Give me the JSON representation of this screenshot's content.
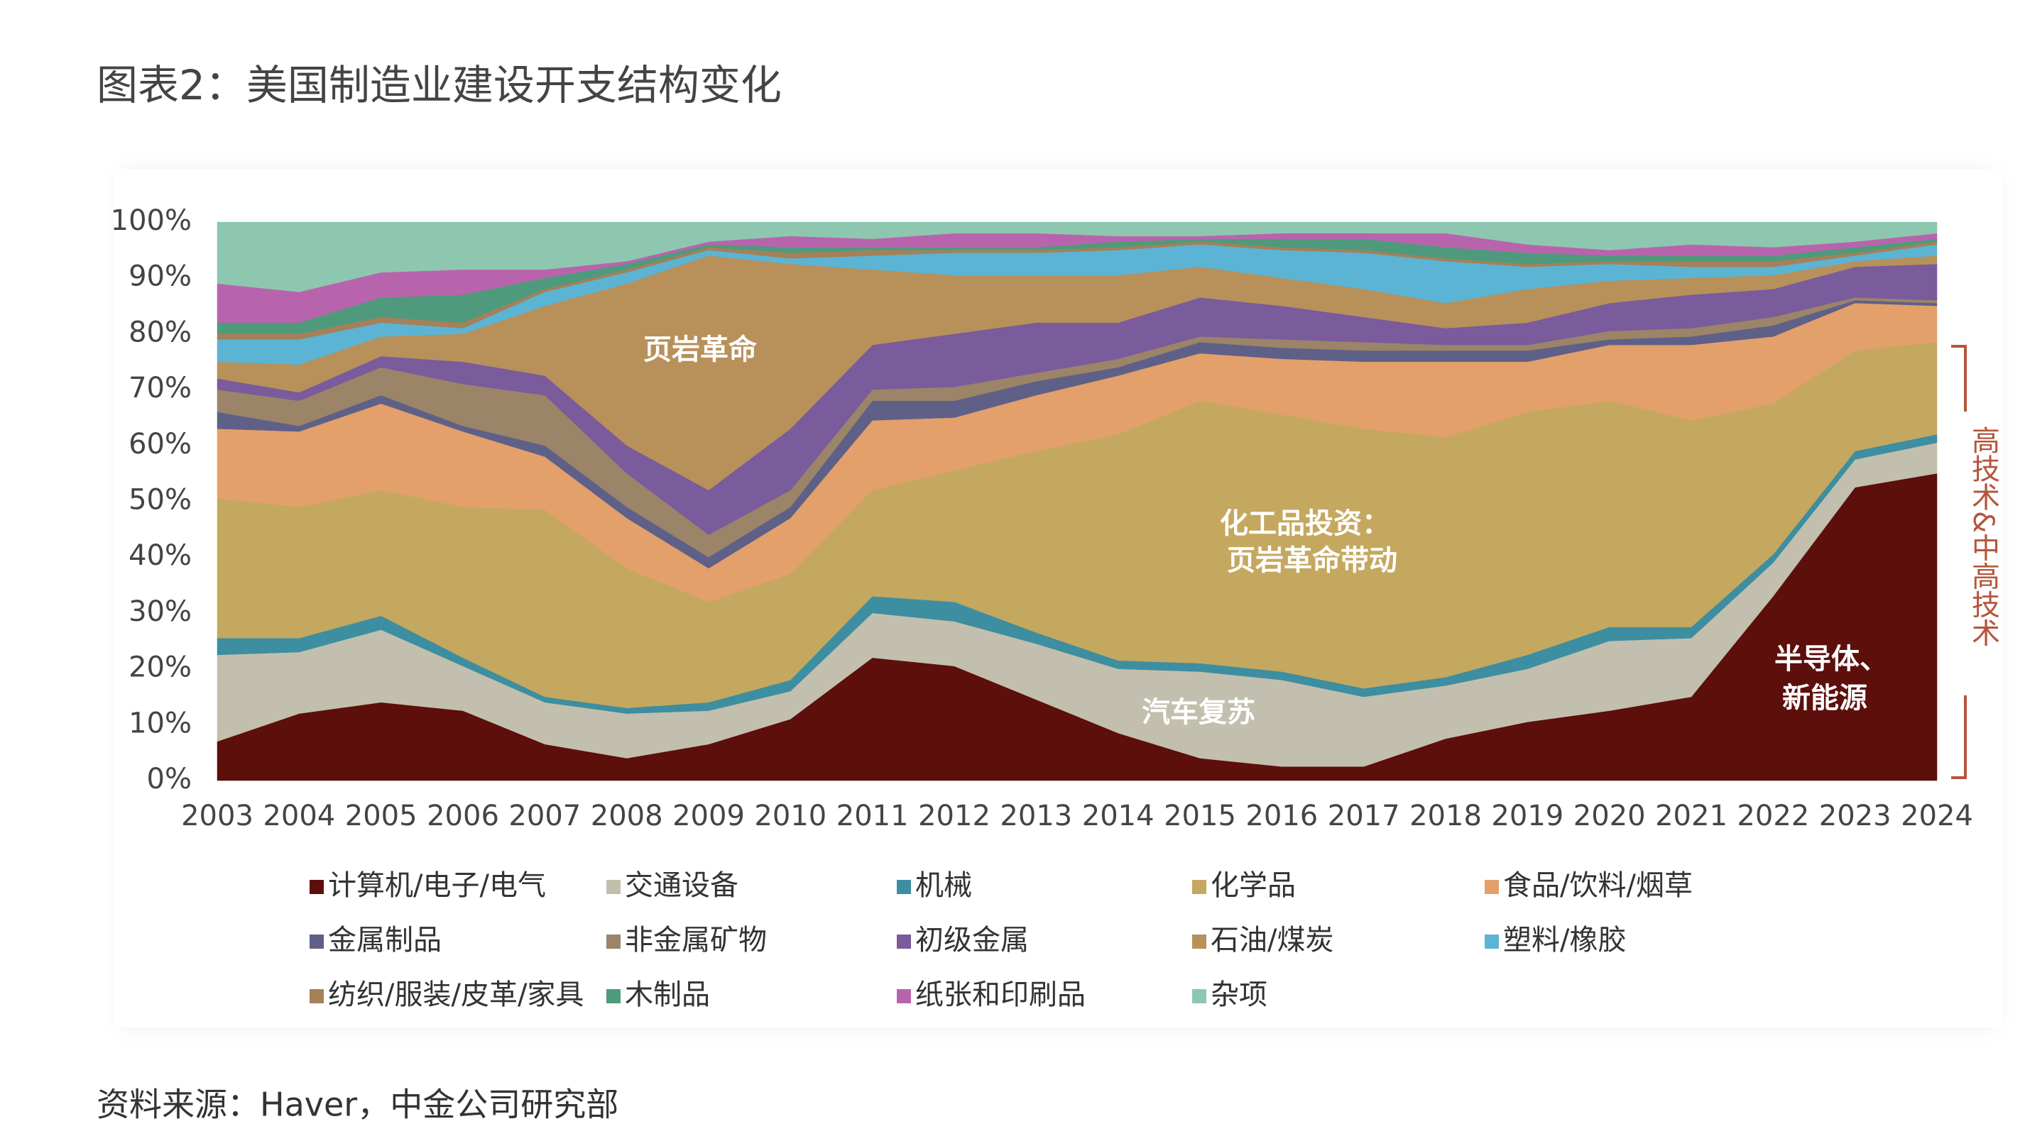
{
  "chart_data": {
    "type": "stacked_area",
    "title": "图表2：美国制造业建设开支结构变化",
    "source": "资料来源：Haver，中金公司研究部",
    "annotations": [
      "页岩革命",
      "化工品投资：",
      "页岩革命带动",
      "汽车复苏",
      "半导体、",
      "新能源"
    ],
    "bracket_label": "高技术&中高技术",
    "categories": [
      "2003",
      "2004",
      "2005",
      "2006",
      "2007",
      "2008",
      "2009",
      "2010",
      "2011",
      "2012",
      "2013",
      "2014",
      "2015",
      "2016",
      "2017",
      "2018",
      "2019",
      "2020",
      "2021",
      "2022",
      "2023",
      "2024"
    ],
    "ylim": [
      0,
      100
    ],
    "yticks": [
      {
        "value": 0,
        "label": "0%"
      },
      {
        "value": 10,
        "label": "10%"
      },
      {
        "value": 20,
        "label": "20%"
      },
      {
        "value": 30,
        "label": "30%"
      },
      {
        "value": 40,
        "label": "40%"
      },
      {
        "value": 50,
        "label": "50%"
      },
      {
        "value": 60,
        "label": "60%"
      },
      {
        "value": 70,
        "label": "70%"
      },
      {
        "value": 80,
        "label": "80%"
      },
      {
        "value": 90,
        "label": "90%"
      },
      {
        "value": 100,
        "label": "100%"
      }
    ],
    "grid": false,
    "series": [
      {
        "name": "计算机/电子/电气",
        "color": "#5c0f0b",
        "values": [
          7,
          12,
          14,
          12.5,
          6.5,
          4,
          6.5,
          11,
          22,
          20.5,
          14.5,
          8.5,
          4,
          2.5,
          2.5,
          7.5,
          10.5,
          12.5,
          15,
          33,
          52.5,
          55
        ]
      },
      {
        "name": "交通设备",
        "color": "#c2bfae",
        "values": [
          15.5,
          11,
          13,
          8,
          7.5,
          8,
          6,
          5,
          8,
          8,
          10,
          11.5,
          15.5,
          15.5,
          12.5,
          9.5,
          9.5,
          12.5,
          10.5,
          6,
          5,
          5.5
        ]
      },
      {
        "name": "机械",
        "color": "#3d8ea0",
        "values": [
          3,
          2.5,
          2.5,
          1.5,
          1,
          1,
          1.5,
          2,
          3,
          3.5,
          2,
          1.5,
          1.5,
          1.5,
          1.5,
          1.5,
          2.5,
          2.5,
          2,
          1.5,
          1.5,
          1.5
        ]
      },
      {
        "name": "化学品",
        "color": "#c4a85f",
        "values": [
          25,
          23.5,
          22.5,
          27,
          33.5,
          25,
          18,
          19,
          19,
          23.5,
          32.5,
          40.5,
          47,
          46,
          46.5,
          43,
          43.5,
          40.5,
          37,
          27,
          18,
          16.5
        ]
      },
      {
        "name": "食品/饮料/烟草",
        "color": "#e3a06a",
        "values": [
          12.5,
          13.5,
          15.5,
          13.5,
          9.5,
          9,
          6,
          10,
          12.5,
          9.5,
          10,
          10.5,
          8.5,
          10,
          12,
          13.5,
          9,
          10,
          13.5,
          12,
          8.5,
          6.5
        ]
      },
      {
        "name": "金属制品",
        "color": "#5f6088",
        "values": [
          3,
          1,
          1.5,
          1,
          2,
          2,
          2,
          2,
          3.5,
          3,
          2.5,
          1.5,
          2,
          2,
          2,
          2,
          2,
          1,
          1.5,
          2,
          0.5,
          0.5
        ]
      },
      {
        "name": "非金属矿物",
        "color": "#9b8468",
        "values": [
          4,
          4.5,
          5,
          7.5,
          9,
          6,
          4,
          3,
          2,
          2.5,
          1.5,
          1.5,
          1,
          1.5,
          1.5,
          1,
          1,
          1.5,
          1.5,
          1.5,
          0.5,
          0.5
        ]
      },
      {
        "name": "初级金属",
        "color": "#7a5b9c",
        "values": [
          2,
          1.5,
          2,
          4,
          3.5,
          5,
          8,
          11,
          8,
          9.5,
          9,
          6.5,
          7,
          6,
          4.5,
          3,
          4,
          5,
          6,
          5,
          5.5,
          6.5
        ]
      },
      {
        "name": "石油/煤炭",
        "color": "#b8905a",
        "values": [
          3,
          5,
          3.5,
          5,
          12.5,
          29,
          42,
          29.5,
          13.5,
          10.5,
          8.5,
          8.5,
          5.5,
          5,
          5,
          4.5,
          6,
          4,
          3,
          2.5,
          1,
          1.5
        ]
      },
      {
        "name": "塑料/橡胶",
        "color": "#5bb4d4",
        "values": [
          4,
          4.5,
          2.5,
          1,
          2.5,
          2,
          1,
          1,
          2.5,
          4,
          4,
          4.5,
          4,
          5,
          6.5,
          7.5,
          4,
          3,
          2,
          1.5,
          1,
          2
        ]
      },
      {
        "name": "纺织/服装/皮革/家具",
        "color": "#a58058",
        "values": [
          1,
          1,
          1,
          1,
          0.5,
          0.5,
          0.5,
          1,
          1,
          0.5,
          0.5,
          0.5,
          0.5,
          0.5,
          0.5,
          0.5,
          0.5,
          0.5,
          1,
          1,
          0.5,
          0.5
        ]
      },
      {
        "name": "木制品",
        "color": "#4f9a7c",
        "values": [
          2,
          2,
          3.5,
          5,
          2,
          1,
          0.5,
          1,
          0.5,
          0.5,
          0.5,
          1,
          0.5,
          1.5,
          2,
          2,
          2,
          1,
          1,
          1,
          1,
          0.5
        ]
      },
      {
        "name": "纸张和印刷品",
        "color": "#b864ad",
        "values": [
          7,
          5.5,
          4.5,
          4.5,
          1.5,
          0.5,
          0.5,
          2,
          1.5,
          2.5,
          2.5,
          1,
          0.5,
          1,
          1,
          2.5,
          1.5,
          1,
          2,
          1.5,
          1,
          1
        ]
      },
      {
        "name": "杂项",
        "color": "#8ec7b0",
        "values": [
          11,
          12.5,
          9,
          8.5,
          8.5,
          7,
          3.5,
          2.5,
          3,
          2,
          2,
          2.5,
          2.5,
          2,
          2,
          2,
          4,
          5,
          4,
          4.5,
          3.5,
          2
        ]
      }
    ]
  }
}
